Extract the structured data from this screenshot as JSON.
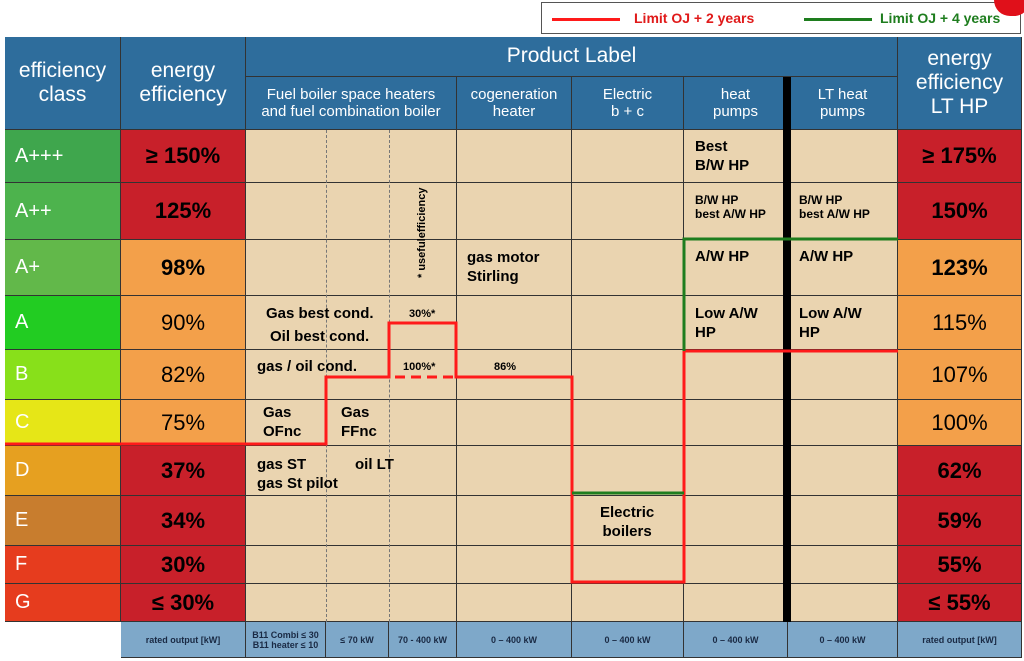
{
  "legend": {
    "limit2": "Limit OJ + 2 years",
    "limit4": "Limit OJ + 4 years",
    "limit2_color": "#ff1a1a",
    "limit4_color": "#1e7d1e"
  },
  "header": {
    "class_title": "efficiency\nclass",
    "energy_title": "energy\nefficiency",
    "product_label": "Product Label",
    "fuel_boiler": "Fuel boiler space heaters\nand fuel combination boiler",
    "cogeneration": "cogeneration\nheater",
    "electric": "Electric\nb + c",
    "heat_pumps": "heat\npumps",
    "lt_heat_pumps": "LT heat\npumps",
    "lt_hp_title": "energy\nefficiency\nLT HP"
  },
  "rows": [
    {
      "cls": "A+++",
      "eff": "≥ 150%",
      "lt": "≥ 175%"
    },
    {
      "cls": "A++",
      "eff": "125%",
      "lt": "150%"
    },
    {
      "cls": "A+",
      "eff": "98%",
      "lt": "123%"
    },
    {
      "cls": "A",
      "eff": "90%",
      "lt": "115%"
    },
    {
      "cls": "B",
      "eff": "82%",
      "lt": "107%"
    },
    {
      "cls": "C",
      "eff": "75%",
      "lt": "100%"
    },
    {
      "cls": "D",
      "eff": "37%",
      "lt": "62%"
    },
    {
      "cls": "E",
      "eff": "34%",
      "lt": "59%"
    },
    {
      "cls": "F",
      "eff": "30%",
      "lt": "55%"
    },
    {
      "cls": "G",
      "eff": "≤ 30%",
      "lt": "≤ 55%"
    }
  ],
  "colors": {
    "class": [
      "#3fa64d",
      "#4db34d",
      "#62b84a",
      "#22cc22",
      "#88e01a",
      "#e6e617",
      "#e6a020",
      "#c87d2e",
      "#e63c1e",
      "#e63c1e"
    ],
    "eff": [
      "#c8202a",
      "#c8202a",
      "#f3a04a",
      "#f3a04a",
      "#f3a04a",
      "#f3a04a",
      "#c8202a",
      "#c8202a",
      "#c8202a",
      "#c8202a"
    ],
    "lt": [
      "#c8202a",
      "#c8202a",
      "#f3a04a",
      "#f3a04a",
      "#f3a04a",
      "#f3a04a",
      "#c8202a",
      "#c8202a",
      "#c8202a",
      "#c8202a"
    ],
    "body": "#ead4b0",
    "header": "#2e6d9c"
  },
  "labels": {
    "best_bw_hp": "Best\nB/W HP",
    "bw_hp_best_aw": "B/W HP\nbest A/W HP",
    "aw_hp": "A/W HP",
    "low_aw_hp": "Low A/W\nHP",
    "lt_bw_hp": "B/W HP\nbest A/W HP",
    "lt_aw_hp": "A/W HP",
    "lt_low_aw_hp": "Low A/W\nHP",
    "gas_motor": "gas motor\nStirling",
    "gas_best": "Gas best cond.",
    "oil_best": "Oil best cond.",
    "gas_oil_cond": "gas / oil cond.",
    "gas_ofnc": "Gas\nOFnc",
    "gas_ffnc": "Gas\nFFnc",
    "gas_st": "gas ST\ngas St pilot",
    "oil_lt": "oil LT",
    "electric_boilers": "Electric\nboilers",
    "useful_eff": "* usefulefficiency",
    "p30": "30%*",
    "p100": "100%*",
    "p86": "86%"
  },
  "footer": {
    "rated": "rated output [kW]",
    "b11": "B11 Combi ≤ 30\nB11 heater ≤ 10",
    "le70": "≤ 70 kW",
    "r70_400": "70 - 400 kW",
    "cogen": "0 – 400 kW",
    "elec": "0 – 400 kW",
    "hp": "0 – 400 kW",
    "lthp": "0 – 400 kW",
    "rated_lt": "rated output [kW]"
  }
}
